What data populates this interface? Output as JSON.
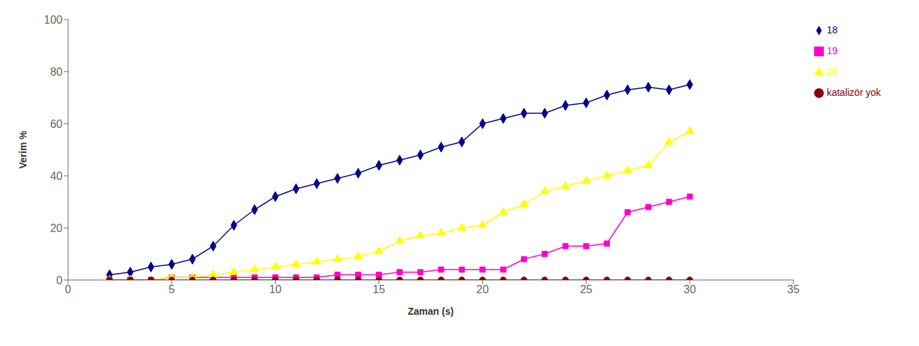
{
  "chart_data": {
    "type": "line",
    "x": [
      2,
      3,
      4,
      5,
      6,
      7,
      8,
      9,
      10,
      11,
      12,
      13,
      14,
      15,
      16,
      17,
      18,
      19,
      20,
      21,
      22,
      23,
      24,
      25,
      26,
      27,
      28,
      29,
      30
    ],
    "series": [
      {
        "name": "18",
        "color": "#00008B",
        "marker": "diamond",
        "values": [
          2,
          3,
          5,
          6,
          8,
          13,
          21,
          27,
          32,
          35,
          37,
          39,
          41,
          44,
          46,
          48,
          51,
          53,
          60,
          62,
          64,
          64,
          67,
          68,
          71,
          73,
          74,
          73,
          75
        ]
      },
      {
        "name": "19",
        "color": "#FF00CC",
        "marker": "square",
        "values": [
          0,
          0,
          0,
          1,
          1,
          1,
          1,
          1,
          1,
          1,
          1,
          2,
          2,
          2,
          3,
          3,
          4,
          4,
          4,
          4,
          8,
          10,
          13,
          13,
          14,
          26,
          28,
          30,
          32
        ]
      },
      {
        "name": "20",
        "color": "#FFFF00",
        "marker": "triangle",
        "values": [
          0,
          0,
          0,
          1,
          1,
          2,
          3,
          4,
          5,
          6,
          7,
          8,
          9,
          11,
          15,
          17,
          18,
          20,
          21,
          26,
          29,
          34,
          36,
          38,
          40,
          42,
          44,
          53,
          57
        ]
      },
      {
        "name": "katalizör yok",
        "color": "#8B0000",
        "marker": "circle",
        "values": [
          0,
          0,
          0,
          0,
          0,
          0,
          0,
          0,
          0,
          0,
          0,
          0,
          0,
          0,
          0,
          0,
          0,
          0,
          0,
          0,
          0,
          0,
          0,
          0,
          0,
          0,
          0,
          0,
          0
        ]
      }
    ],
    "xlabel": "Zaman (s)",
    "ylabel": "Verim %",
    "xlim": [
      0,
      35
    ],
    "ylim": [
      0,
      100
    ],
    "xticks": [
      0,
      5,
      10,
      15,
      20,
      25,
      30,
      35
    ],
    "yticks": [
      0,
      20,
      40,
      60,
      80,
      100
    ],
    "grid": false,
    "legend": "right"
  }
}
